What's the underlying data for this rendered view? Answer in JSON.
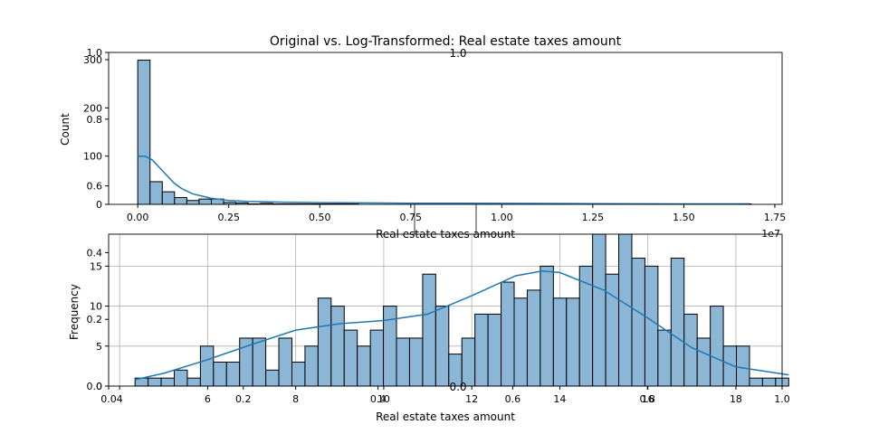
{
  "figure_title": "Original vs. Log-Transformed: Real estate taxes amount",
  "colors": {
    "bar_fill": "#8cb6d6",
    "bar_edge": "#000000",
    "kde": "#1f77b4",
    "grid": "#b0b0b0"
  },
  "chart_data": [
    {
      "type": "bar",
      "title": "Original vs. Log-Transformed: Real estate taxes amount",
      "xlabel": "Real estate taxes amount",
      "ylabel": "Count",
      "x_offset_label": "1e7",
      "xlim": [
        -0.08,
        1.77
      ],
      "ylim": [
        0,
        315
      ],
      "xticks": [
        "0.00",
        "0.25",
        "0.50",
        "0.75",
        "1.00",
        "1.25",
        "1.50",
        "1.75"
      ],
      "yticks": [
        "0",
        "100",
        "200",
        "300"
      ],
      "bin_start": 0,
      "bin_width": 0.0337,
      "counts": [
        299,
        47,
        26,
        14,
        8,
        11,
        11,
        4,
        3,
        1,
        2,
        1,
        1,
        1,
        1,
        1,
        1,
        1,
        0,
        0,
        0,
        0,
        0,
        0,
        0,
        0,
        0,
        0,
        0,
        0,
        0,
        0,
        0,
        0,
        0,
        0,
        0,
        0,
        0,
        0,
        0,
        0,
        0,
        0,
        0,
        0,
        0,
        0,
        0,
        1
      ],
      "kde_x": [
        0.0,
        0.02,
        0.04,
        0.06,
        0.08,
        0.1,
        0.12,
        0.15,
        0.2,
        0.25,
        0.3,
        0.4,
        0.5,
        0.75,
        1.0,
        1.25,
        1.5,
        1.68
      ],
      "kde_y": [
        100,
        100,
        92,
        76,
        60,
        44,
        33,
        22,
        13,
        8,
        6,
        4.5,
        3.5,
        2.5,
        2,
        1.5,
        1,
        1
      ],
      "grid": false
    },
    {
      "type": "bar",
      "xlabel": "Real estate taxes amount",
      "ylabel": "Frequency",
      "xlim": [
        3.75,
        19.05
      ],
      "ylim": [
        0,
        19
      ],
      "xticks": [
        "4",
        "6",
        "8",
        "10",
        "12",
        "14",
        "16",
        "18"
      ],
      "yticks": [
        "0",
        "5",
        "10",
        "15"
      ],
      "bin_start": 4.35,
      "bin_width": 0.297,
      "counts": [
        1,
        1,
        1,
        2,
        1,
        5,
        3,
        3,
        6,
        6,
        2,
        6,
        3,
        5,
        11,
        10,
        7,
        5,
        7,
        10,
        6,
        6,
        14,
        10,
        4,
        6,
        9,
        9,
        13,
        11,
        12,
        15,
        11,
        11,
        15,
        19,
        14,
        19,
        16,
        15,
        7,
        16,
        9,
        6,
        10,
        5,
        5,
        1,
        1,
        1
      ],
      "kde_x": [
        4.35,
        5,
        6,
        7,
        8,
        9,
        10,
        11,
        12,
        13,
        13.6,
        14,
        15,
        16,
        17,
        18,
        19.2
      ],
      "kde_y": [
        0.8,
        1.6,
        3.3,
        5.2,
        7,
        7.8,
        8.2,
        9,
        11.3,
        13.8,
        14.4,
        14.2,
        12,
        8.5,
        4.8,
        2.4,
        1.4
      ],
      "grid": true
    }
  ],
  "overlay_axis": {
    "yticks": [
      "0.0",
      "0.2",
      "0.4",
      "0.6",
      "0.8",
      "1.0"
    ],
    "xticks": [
      "0.0",
      "0.2",
      "0.4",
      "0.6",
      "0.8",
      "1.0"
    ],
    "top_label": "1.0",
    "inner_label": "0.0"
  }
}
